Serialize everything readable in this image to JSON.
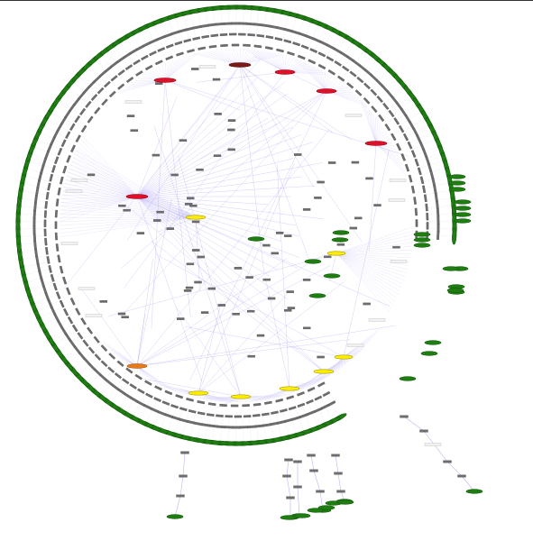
{
  "diagram": {
    "type": "radial-network-graph",
    "labels_legible": false,
    "colors": {
      "background": "#ffffff",
      "frame_rule": "#333333",
      "edge": "#8877ee",
      "edge_dense": "#9a8cf0",
      "node_gray": "#6e6e6e",
      "node_gray_outline": "#555555",
      "leaf_green": "#1f7d12",
      "leaf_green_outline": "#0f5a08",
      "hub_red": "#e0102a",
      "hub_darkred": "#7a1a18",
      "hub_orange": "#e87a1c",
      "hub_yellow": "#ffee00",
      "hub_yellow_outline": "#a89e00",
      "label_box": "#f2f2f2",
      "label_box_outline": "#bbbbbb"
    },
    "node_shapes": {
      "leaf": "ellipse",
      "hub": "ellipse",
      "intermediate": "rectangle"
    },
    "node_groups": {
      "outer_leaves": {
        "name": "outer-leaf-ring",
        "color_key": "leaf_green",
        "count": 150
      },
      "gray_ring_outer": {
        "name": "gray-ring-outer",
        "color_key": "node_gray",
        "count": 140
      },
      "gray_ring_middle": {
        "name": "gray-ring-middle",
        "color_key": "node_gray",
        "count": 110
      },
      "gray_ring_inner": {
        "name": "gray-ring-inner",
        "color_key": "node_gray",
        "count": 85
      },
      "hubs_red": {
        "name": "hub-red",
        "color_key": "hub_red",
        "count": 6
      },
      "hubs_darkred": {
        "name": "hub-darkred",
        "color_key": "hub_darkred",
        "count": 1
      },
      "hubs_orange": {
        "name": "hub-orange",
        "color_key": "hub_orange",
        "count": 1
      },
      "hubs_yellow": {
        "name": "hub-yellow",
        "color_key": "hub_yellow",
        "count": 6
      },
      "interior_gray": {
        "name": "interior-node",
        "color_key": "node_gray",
        "count": 70
      },
      "interior_green": {
        "name": "interior-leaf",
        "color_key": "leaf_green",
        "count": 8
      },
      "branch_gray": {
        "name": "branch-node",
        "color_key": "node_gray",
        "count": 18
      },
      "branch_green": {
        "name": "branch-leaf",
        "color_key": "leaf_green",
        "count": 12
      },
      "right_stack": {
        "name": "right-stack-leaf",
        "color_key": "leaf_green",
        "count": 16
      },
      "label_boxes": {
        "name": "label-box",
        "color_key": "label_box",
        "count": 14
      }
    },
    "edges": {
      "radial_fans": 12,
      "long_range": 55,
      "branch_links": 18
    }
  }
}
